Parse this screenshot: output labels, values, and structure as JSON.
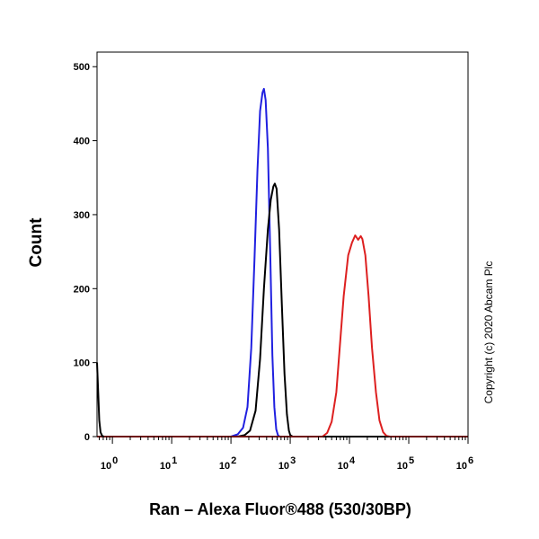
{
  "chart_data": {
    "type": "line",
    "title": "",
    "xlabel": "Ran – Alexa Fluor®488 (530/30BP)",
    "ylabel": "Count",
    "x_scale": "log",
    "xlim": [
      0.55,
      1000000
    ],
    "ylim": [
      0,
      510
    ],
    "y_ticks": [
      0,
      100,
      200,
      300,
      400,
      500
    ],
    "x_ticks": [
      {
        "exp": 0,
        "value": 1
      },
      {
        "exp": 1,
        "value": 10
      },
      {
        "exp": 2,
        "value": 100
      },
      {
        "exp": 3,
        "value": 1000
      },
      {
        "exp": 4,
        "value": 10000
      },
      {
        "exp": 5,
        "value": 100000
      },
      {
        "exp": 6,
        "value": 1000000
      }
    ],
    "grid": false,
    "legend": "none",
    "series": [
      {
        "color": "#2020e0",
        "points": [
          [
            0.55,
            0
          ],
          [
            100,
            0
          ],
          [
            130,
            3
          ],
          [
            160,
            12
          ],
          [
            190,
            40
          ],
          [
            220,
            120
          ],
          [
            250,
            240
          ],
          [
            280,
            360
          ],
          [
            310,
            440
          ],
          [
            340,
            465
          ],
          [
            360,
            470
          ],
          [
            385,
            455
          ],
          [
            420,
            390
          ],
          [
            460,
            250
          ],
          [
            500,
            110
          ],
          [
            540,
            40
          ],
          [
            580,
            10
          ],
          [
            620,
            2
          ],
          [
            660,
            0
          ],
          [
            1000000,
            0
          ]
        ]
      },
      {
        "color": "#000000",
        "points": [
          [
            0.55,
            0
          ],
          [
            130,
            0
          ],
          [
            170,
            2
          ],
          [
            210,
            8
          ],
          [
            260,
            35
          ],
          [
            310,
            105
          ],
          [
            360,
            200
          ],
          [
            420,
            280
          ],
          [
            470,
            320
          ],
          [
            520,
            338
          ],
          [
            550,
            342
          ],
          [
            590,
            335
          ],
          [
            650,
            280
          ],
          [
            720,
            180
          ],
          [
            800,
            85
          ],
          [
            880,
            30
          ],
          [
            950,
            8
          ],
          [
            1000,
            2
          ],
          [
            1100,
            0
          ],
          [
            1000000,
            0
          ]
        ]
      },
      {
        "color": "#dd2020",
        "points": [
          [
            0.55,
            0
          ],
          [
            3500,
            0
          ],
          [
            4200,
            5
          ],
          [
            5000,
            20
          ],
          [
            6000,
            60
          ],
          [
            7000,
            130
          ],
          [
            8000,
            190
          ],
          [
            9500,
            245
          ],
          [
            11000,
            262
          ],
          [
            12500,
            272
          ],
          [
            14000,
            266
          ],
          [
            15500,
            271
          ],
          [
            16500,
            267
          ],
          [
            18500,
            245
          ],
          [
            21000,
            190
          ],
          [
            24000,
            120
          ],
          [
            28000,
            60
          ],
          [
            32000,
            22
          ],
          [
            37000,
            6
          ],
          [
            42000,
            1
          ],
          [
            48000,
            0
          ],
          [
            1000000,
            0
          ]
        ]
      },
      {
        "color": "#000000",
        "points": [
          [
            0.55,
            100
          ],
          [
            0.575,
            60
          ],
          [
            0.6,
            22
          ],
          [
            0.63,
            6
          ],
          [
            0.67,
            1
          ],
          [
            0.72,
            0
          ]
        ]
      }
    ]
  },
  "copyright": "Copyright (c) 2020 Abcam Plc"
}
